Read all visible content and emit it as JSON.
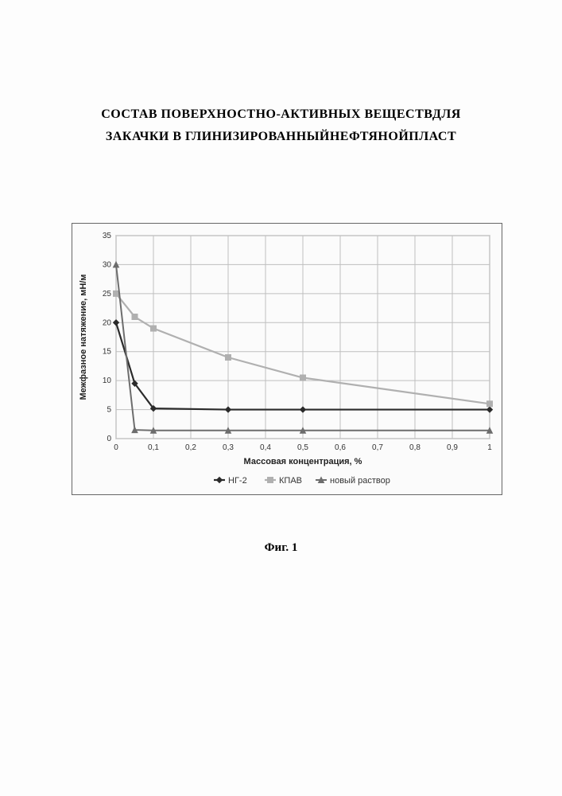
{
  "title": {
    "line1": "СОСТАВ ПОВЕРХНОСТНО-АКТИВНЫХ ВЕЩЕСТВДЛЯ",
    "line2": "ЗАКАЧКИ В ГЛИНИЗИРОВАННЫЙНЕФТЯНОЙПЛАСТ"
  },
  "caption": "Фиг. 1",
  "chart": {
    "type": "line",
    "xlabel": "Массовая концентрация, %",
    "ylabel": "Межфазное натяжение, мН/м",
    "xlim": [
      0,
      1.0
    ],
    "ylim": [
      0,
      35
    ],
    "xtick_step": 0.1,
    "ytick_step": 5,
    "xticks": [
      0,
      0.1,
      0.2,
      0.3,
      0.4,
      0.5,
      0.6,
      0.7,
      0.8,
      0.9,
      1.0
    ],
    "xtick_labels": [
      "0",
      "0,1",
      "0,2",
      "0,3",
      "0,4",
      "0,5",
      "0,6",
      "0,7",
      "0,8",
      "0,9",
      "1"
    ],
    "yticks": [
      0,
      5,
      10,
      15,
      20,
      25,
      30,
      35
    ],
    "ytick_labels": [
      "0",
      "5",
      "10",
      "15",
      "20",
      "25",
      "30",
      "35"
    ],
    "background_color": "#fbfbfb",
    "plot_border_color": "#9a9a9a",
    "grid_color": "#bfbfbf",
    "grid_width": 1,
    "tick_fontsize": 10,
    "label_fontsize": 11,
    "series": [
      {
        "name": "НГ-2",
        "color": "#2b2b2b",
        "marker": "diamond",
        "marker_size": 7,
        "line_width": 2.2,
        "x": [
          0,
          0.05,
          0.1,
          0.3,
          0.5,
          1.0
        ],
        "y": [
          20,
          9.5,
          5.2,
          5.0,
          5.0,
          5.0
        ]
      },
      {
        "name": "КПАВ",
        "color": "#b0b0b0",
        "marker": "square",
        "marker_size": 7,
        "line_width": 2.2,
        "x": [
          0,
          0.05,
          0.1,
          0.3,
          0.5,
          1.0
        ],
        "y": [
          25,
          21,
          19,
          14,
          10.5,
          6
        ]
      },
      {
        "name": "новый раствор",
        "color": "#6d6d6d",
        "marker": "triangle",
        "marker_size": 7,
        "line_width": 2.0,
        "x": [
          0,
          0.05,
          0.1,
          0.3,
          0.5,
          1.0
        ],
        "y": [
          30,
          1.5,
          1.4,
          1.4,
          1.4,
          1.4
        ]
      }
    ],
    "legend_position": "bottom"
  }
}
